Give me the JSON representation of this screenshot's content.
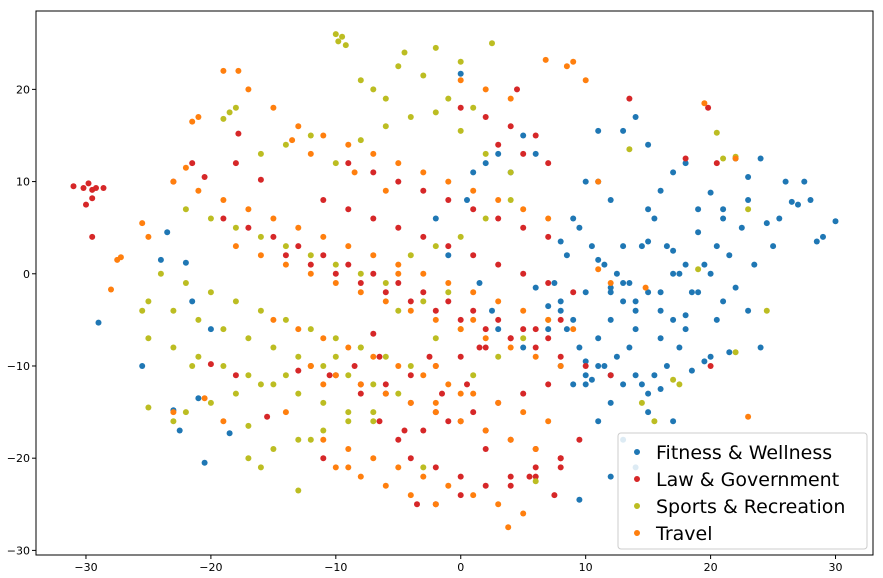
{
  "chart_data": {
    "type": "scatter",
    "title": "",
    "xlabel": "",
    "ylabel": "",
    "xlim": [
      -34,
      33
    ],
    "ylim": [
      -30.5,
      28.5
    ],
    "xticks": [
      -30,
      -20,
      -10,
      0,
      10,
      20,
      30
    ],
    "yticks": [
      -30,
      -20,
      -10,
      0,
      10,
      20
    ],
    "xtick_labels": [
      "−30",
      "−20",
      "−10",
      "0",
      "10",
      "20",
      "30"
    ],
    "ytick_labels": [
      "−30",
      "−20",
      "−10",
      "0",
      "10",
      "20"
    ],
    "grid": false,
    "legend_position": "lower-right",
    "series": [
      {
        "name": "Fitness & Wellness",
        "color": "#1f77b4",
        "x": [
          28,
          29,
          27.5,
          28.5,
          26,
          25,
          24,
          23,
          22,
          21,
          20,
          19,
          18,
          17,
          16,
          15,
          14,
          13,
          12,
          11,
          10,
          9,
          8,
          27,
          26.5,
          24.5,
          23.5,
          22.5,
          21.5,
          20.5,
          19.5,
          18.5,
          17.5,
          16.5,
          15.5,
          14.5,
          13.5,
          12.5,
          11.5,
          10.5,
          9.5,
          8.5,
          7.5,
          22,
          21,
          20,
          19,
          18,
          17,
          16,
          15,
          14,
          13,
          12,
          11,
          10,
          9,
          8,
          7,
          6,
          24,
          23,
          21.5,
          20.5,
          19.5,
          18.5,
          17.5,
          16.5,
          15.5,
          14.5,
          13.5,
          12.5,
          11.5,
          10.5,
          9.5,
          8.5,
          19,
          18,
          17,
          16,
          15,
          14,
          13,
          12,
          11,
          10,
          9,
          8,
          7,
          16,
          15,
          14,
          13,
          12,
          11,
          10,
          20,
          18,
          16,
          14,
          12,
          30,
          25.5,
          23,
          21,
          17,
          15,
          13,
          11,
          -25.5,
          -23,
          -22,
          -20.5,
          -21,
          -23.5,
          -29,
          -22.5,
          -20,
          -18.5,
          -21.5,
          -24,
          0,
          2,
          4,
          5,
          3,
          6,
          1,
          9.5,
          12,
          14,
          11,
          13,
          17,
          15,
          12,
          10,
          8,
          5,
          3,
          2.5,
          1.5,
          -1,
          -2,
          0.5
        ],
        "y": [
          8,
          4,
          10,
          3.5,
          10,
          3,
          12.5,
          10.5,
          12.5,
          6,
          8.8,
          4.5,
          12,
          2.5,
          9,
          14,
          17,
          15.5,
          8,
          15.5,
          10,
          6,
          3.5,
          7.5,
          7.8,
          5.5,
          1,
          5,
          2,
          3,
          1,
          -2,
          0,
          3,
          6,
          3,
          -1,
          0,
          1,
          3,
          5,
          2,
          -1,
          -1.5,
          -3,
          0,
          -2,
          -4.5,
          -5,
          -7,
          -2,
          -4,
          -3,
          -5,
          -7,
          -2,
          -5,
          -3,
          -3.5,
          -1.5,
          -8,
          -4,
          -8.5,
          -5,
          -9.5,
          -10.5,
          -8,
          -10,
          -11,
          -12,
          -8,
          -9,
          -10,
          -11.5,
          -8,
          -6,
          7,
          1,
          0,
          -2,
          3.5,
          -6,
          -1,
          -1.5,
          1.5,
          -9.5,
          -12,
          -4,
          -6,
          -12.5,
          -13,
          -11,
          -12,
          -11,
          -10,
          -11,
          -9,
          -6,
          -4,
          -3,
          -2,
          5.7,
          6,
          8,
          7,
          11,
          7,
          3,
          10,
          -10,
          -14.8,
          1.2,
          -20.5,
          -13.5,
          4.5,
          -5.3,
          -17,
          -6,
          -17.3,
          -3,
          1.5,
          21.7,
          12,
          11,
          15,
          13,
          13,
          11,
          -24.5,
          -22,
          -21,
          -16,
          -18,
          -16,
          -15,
          -14,
          -12,
          -10,
          -8,
          -6,
          -4,
          -1,
          2,
          6,
          8
        ],
        "size": 5
      },
      {
        "name": "Law & Government",
        "color": "#d62728",
        "x": [
          -31,
          -30.2,
          -29.8,
          -29.5,
          -29.2,
          -28.6,
          -30,
          -29.5,
          -29.5,
          -20,
          -17.8,
          -16,
          -20.5,
          -18,
          -21.5,
          -23,
          -19,
          -17,
          -15,
          -13,
          -11,
          -9,
          -7,
          -5,
          -3,
          -1,
          1,
          3,
          5,
          7,
          -14,
          -12,
          -10,
          -8,
          -6,
          -4,
          -2,
          0,
          2,
          4,
          6,
          8,
          10,
          12,
          -11,
          -9,
          -7,
          -5,
          -3,
          -1,
          1,
          3,
          5,
          7,
          9,
          -12,
          -10,
          -8,
          -6,
          -4,
          -2,
          0,
          2,
          4,
          6,
          8,
          -9,
          -7,
          -5,
          -3,
          -1,
          1,
          3,
          5,
          7,
          -8,
          -6,
          -4,
          -2,
          0,
          2,
          4,
          6,
          8,
          -5,
          -3,
          -1,
          1,
          3,
          5,
          7,
          -4,
          -2,
          0,
          2,
          4,
          6,
          8,
          -2,
          0,
          2,
          4,
          6,
          8,
          0,
          2,
          4,
          6,
          3,
          5,
          7,
          19.8,
          13.5,
          20.5,
          18,
          20,
          -15.5,
          -6.5,
          -11,
          -4.5,
          -3.5,
          -1.5,
          0.5,
          -10.5,
          -8.5,
          -6.5,
          -2.5,
          1.5,
          -7,
          5.5,
          7.5,
          9.5,
          -13,
          -18,
          4.5
        ],
        "y": [
          9.5,
          9.3,
          9.8,
          9.1,
          9.3,
          9.3,
          7.5,
          8.2,
          4,
          -9.8,
          15.2,
          10.2,
          10.5,
          12,
          12,
          10,
          6,
          5,
          4,
          3,
          2,
          1,
          0,
          -1,
          -2,
          -3,
          -4,
          -5,
          -6,
          -7,
          2,
          1,
          0,
          -1,
          -2,
          -3,
          -4,
          -5,
          -6,
          -7,
          -8,
          -9,
          -10,
          -11,
          8,
          7,
          6,
          5,
          4,
          3,
          2,
          1,
          0,
          -1,
          -2,
          -10,
          -11,
          -12,
          -13,
          -14,
          -15,
          -16,
          -17,
          -18,
          -19,
          -20,
          12,
          11,
          10,
          9,
          8,
          7,
          6,
          5,
          4,
          -13,
          -12,
          -11,
          -10,
          -9,
          -8,
          -7,
          -6,
          -5,
          -18,
          -17,
          -16,
          -15,
          -14,
          -13,
          -12,
          -20,
          -21,
          -22,
          -19,
          -23,
          -22,
          -21,
          -25,
          -24,
          -23,
          -22,
          -21,
          -20,
          18,
          17,
          16,
          15,
          14,
          13,
          12,
          18,
          19,
          12,
          12.5,
          -10,
          -15.5,
          -16,
          -20,
          -17,
          -25,
          -13,
          -12,
          -11,
          -10,
          -9,
          -9,
          -8,
          -6.5,
          -22,
          -24,
          -18,
          -10.5,
          -11,
          20
        ],
        "size": 5
      },
      {
        "name": "Sports & Recreation",
        "color": "#bcbd22",
        "x": [
          -9.5,
          -9.8,
          -9.2,
          -10,
          2.5,
          -2,
          -4.5,
          -5,
          -8,
          -6,
          -7,
          -3,
          0,
          1,
          -1,
          -18,
          -18.5,
          -19,
          -16,
          -14,
          -12,
          -10,
          -8,
          -6,
          -4,
          -2,
          0,
          2,
          4,
          -22,
          -20,
          -18,
          -16,
          -14,
          -12,
          -10,
          -8,
          -6,
          -4,
          -2,
          0,
          2,
          4,
          -24,
          -22,
          -20,
          -18,
          -16,
          -14,
          -12,
          -10,
          -8,
          -6,
          -4,
          -2,
          0,
          -25,
          -23,
          -21,
          -19,
          -17,
          -15,
          -13,
          -11,
          -9,
          -7,
          -5,
          -3,
          -1,
          -25,
          -23,
          -21,
          -19,
          -17,
          -15,
          -13,
          -11,
          -9,
          -7,
          -22,
          -20,
          -18,
          -16,
          -14,
          -12,
          -10,
          -8,
          -17,
          -16,
          -13,
          -11,
          -9,
          20.5,
          21,
          22,
          23,
          24.5,
          22,
          17.5,
          13.5,
          15.5,
          14.5,
          17,
          19,
          -21.5,
          -23,
          -25,
          -13,
          -3,
          -25.5,
          6,
          -17,
          -15,
          -12,
          -7,
          -5,
          1,
          3,
          5,
          7
        ],
        "y": [
          25.7,
          25.2,
          24.8,
          26,
          25,
          24.5,
          24,
          22.5,
          21,
          19,
          20,
          21.5,
          23,
          18,
          19,
          18,
          17.5,
          16.8,
          13,
          14,
          15,
          12,
          14.5,
          16,
          17,
          17.5,
          15.5,
          13,
          11,
          7,
          6,
          5,
          4,
          3,
          2,
          1,
          0,
          -1,
          2,
          3,
          4,
          6,
          8,
          0,
          -1,
          -2,
          -3,
          -4,
          -5,
          -6,
          -7,
          -8,
          -9,
          -10,
          -7,
          -6,
          -3,
          -4,
          -5,
          -6,
          -7,
          -8,
          -9,
          -10,
          -11,
          -12,
          -4,
          -3,
          -2,
          -7,
          -8,
          -9,
          -10,
          -11,
          -12,
          -13,
          -14,
          -15,
          -16,
          -15,
          -14,
          -13,
          -12,
          -11,
          -10,
          -9,
          -8,
          -20,
          -21,
          -18,
          -17,
          -16,
          15.3,
          12.5,
          12.7,
          7,
          -4,
          -8.5,
          -12,
          13.5,
          -16,
          -14,
          -11.5,
          0.5,
          -10,
          -16,
          -14.5,
          -23.5,
          -21,
          -4,
          -22.5,
          -16.5,
          -19,
          -18,
          -15,
          -13,
          -11,
          -9,
          -7,
          -5
        ],
        "size": 5
      },
      {
        "name": "Travel",
        "color": "#ff7f0e",
        "x": [
          -27.2,
          -27.5,
          -28,
          -25.5,
          -25,
          -22,
          -21,
          -19,
          -17,
          -15,
          -13,
          -11,
          -9,
          -7,
          -5,
          -3,
          -1,
          1,
          3,
          5,
          7,
          -23,
          -21,
          -19,
          -17,
          -15,
          -13,
          -11,
          -9,
          -7,
          -5,
          -3,
          -1,
          1,
          3,
          5,
          7,
          9,
          -18,
          -16,
          -14,
          -12,
          -10,
          -8,
          -6,
          -4,
          -2,
          0,
          2,
          4,
          6,
          8,
          -15,
          -13,
          -11,
          -9,
          -7,
          -5,
          -3,
          -1,
          1,
          3,
          5,
          7,
          -12,
          -10,
          -8,
          -6,
          -4,
          -2,
          0,
          2,
          4,
          6,
          -11,
          -9,
          -7,
          -5,
          -3,
          -1,
          1,
          3,
          5,
          -10,
          -8,
          -6,
          -4,
          -2,
          0,
          2,
          4,
          -17.8,
          -21.5,
          -13.5,
          -12,
          -8.5,
          -6,
          10,
          11,
          12,
          14.8,
          19.5,
          22,
          23,
          6.8,
          8.5,
          -20.5,
          -19,
          -23,
          -5,
          -2,
          1,
          3.8,
          -9,
          -11,
          -14,
          -2,
          0,
          9,
          11
        ],
        "y": [
          1.8,
          1.5,
          -1.7,
          5.5,
          4,
          11.5,
          17,
          22,
          20,
          18,
          16,
          15,
          14,
          13,
          12,
          11,
          10,
          9,
          8,
          7,
          6,
          10,
          9,
          8,
          7,
          6,
          5,
          4,
          3,
          2,
          1,
          0,
          -1,
          -2,
          -3,
          -4,
          -5,
          -6,
          3,
          2,
          1,
          0,
          -1,
          -2,
          -3,
          -4,
          -5,
          -6,
          -7,
          -8,
          -9,
          -10,
          -5,
          -6,
          -7,
          -8,
          -9,
          -10,
          -11,
          -12,
          -13,
          -14,
          -15,
          -16,
          -10,
          -11,
          -12,
          -13,
          -14,
          -15,
          -16,
          -17,
          -18,
          -19,
          -18,
          -19,
          -20,
          -21,
          -22,
          -23,
          -24,
          -25,
          -26,
          -21,
          -22,
          -23,
          -24,
          -25,
          21,
          20,
          19,
          22,
          16.5,
          14.5,
          13,
          11,
          9,
          21,
          0.5,
          -1,
          -1.5,
          18.5,
          12.5,
          -15.5,
          23.2,
          22.5,
          -13.5,
          -16,
          -15,
          0,
          -10,
          -5,
          -27.5,
          -21,
          -12,
          -15,
          -14,
          -13,
          23,
          10
        ],
        "size": 5
      }
    ]
  }
}
